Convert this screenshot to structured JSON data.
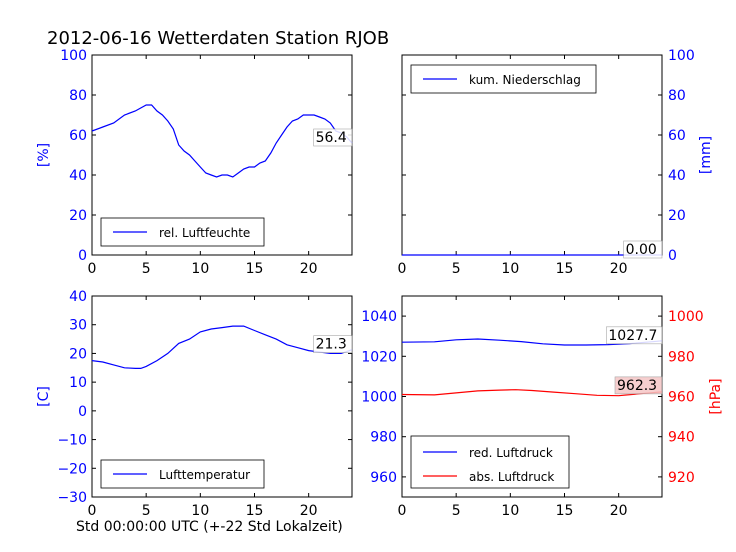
{
  "title": "2012-06-16 Wetterdaten Station RJOB",
  "xlabel": "Std 00:00:00 UTC (+-22 Std Lokalzeit)",
  "colors": {
    "blue": "#0000ff",
    "red": "#ff0000",
    "black": "#000000"
  },
  "chart_data": [
    {
      "type": "line",
      "xlim": [
        0,
        24
      ],
      "ylim": [
        0,
        100
      ],
      "xticks": [
        "0",
        "5",
        "10",
        "15",
        "20"
      ],
      "yticks": [
        "0",
        "20",
        "40",
        "60",
        "80",
        "100"
      ],
      "ylabel": "[%]",
      "legend": "bottom-left",
      "series": [
        {
          "name": "rel. Luftfeuchte",
          "color": "#0000ff",
          "x": [
            0,
            1,
            2,
            3,
            4,
            5,
            5.5,
            6,
            6.5,
            7,
            7.5,
            8,
            8.5,
            9,
            9.5,
            10,
            10.5,
            11,
            11.5,
            12,
            12.5,
            13,
            13.5,
            14,
            14.5,
            15,
            15.5,
            16,
            16.5,
            17,
            17.5,
            18,
            18.5,
            19,
            19.5,
            20,
            20.5,
            21,
            21.5,
            22,
            22.5,
            23,
            23.5,
            24
          ],
          "y": [
            62,
            64,
            66,
            70,
            72,
            75,
            75,
            72,
            70,
            67,
            63,
            55,
            52,
            50,
            47,
            44,
            41,
            40,
            39,
            40,
            40,
            39,
            41,
            43,
            44,
            44,
            46,
            47,
            51,
            56,
            60,
            64,
            67,
            68,
            70,
            70,
            70,
            69,
            68,
            66,
            62,
            61,
            59,
            56
          ]
        }
      ],
      "end_label": "56.4"
    },
    {
      "type": "line",
      "xlim": [
        0,
        24
      ],
      "ylim": [
        0,
        100
      ],
      "xticks": [
        "0",
        "5",
        "10",
        "15",
        "20"
      ],
      "yticks": [
        "0",
        "20",
        "40",
        "60",
        "80",
        "100"
      ],
      "ylabel": "[mm]",
      "legend": "top-left",
      "series": [
        {
          "name": "kum. Niederschlag",
          "color": "#0000ff",
          "x": [
            0,
            24
          ],
          "y": [
            0,
            0
          ]
        }
      ],
      "end_label": "0.00"
    },
    {
      "type": "line",
      "xlim": [
        0,
        24
      ],
      "ylim": [
        -30,
        40
      ],
      "xticks": [
        "0",
        "5",
        "10",
        "15",
        "20"
      ],
      "yticks": [
        "−30",
        "−20",
        "−10",
        "0",
        "10",
        "20",
        "30",
        "40"
      ],
      "ylabel": "[C]",
      "legend": "bottom-left",
      "series": [
        {
          "name": "Lufttemperatur",
          "color": "#0000ff",
          "x": [
            0,
            1,
            2,
            3,
            4,
            4.5,
            5,
            6,
            7,
            8,
            9,
            10,
            11,
            12,
            13,
            14,
            15,
            16,
            17,
            18,
            19,
            20,
            21,
            22,
            23,
            24
          ],
          "y": [
            17.5,
            17,
            16,
            15,
            14.8,
            14.8,
            15.5,
            17.5,
            20,
            23.5,
            25,
            27.5,
            28.5,
            29,
            29.5,
            29.5,
            28,
            26.5,
            25,
            23,
            22,
            21,
            20.5,
            20,
            20,
            21.3
          ]
        }
      ],
      "end_label": "21.3"
    },
    {
      "type": "line",
      "xlim": [
        0,
        24
      ],
      "ylim": [
        950,
        1050
      ],
      "ylim_right": [
        910,
        1010
      ],
      "xticks": [
        "0",
        "5",
        "10",
        "15",
        "20"
      ],
      "yticks": [
        "960",
        "980",
        "1000",
        "1020",
        "1040"
      ],
      "yticks_right": [
        "920",
        "940",
        "960",
        "980",
        "1000"
      ],
      "ylabel_right": "[hPa]",
      "legend": "bottom-left",
      "series": [
        {
          "name": "red. Luftdruck",
          "color": "#0000ff",
          "axis": "left",
          "x": [
            0,
            3,
            5,
            7,
            9,
            11,
            13,
            15,
            17,
            19,
            21,
            23,
            24
          ],
          "y": [
            1027,
            1027.2,
            1028.2,
            1028.6,
            1028,
            1027.3,
            1026.2,
            1025.6,
            1025.6,
            1025.8,
            1026.3,
            1027.2,
            1027.7
          ]
        },
        {
          "name": "abs. Luftdruck",
          "color": "#ff0000",
          "axis": "right",
          "x": [
            0,
            3,
            5,
            7,
            9,
            10.5,
            12,
            14,
            16,
            18,
            20,
            22,
            24
          ],
          "y": [
            961,
            960.8,
            961.8,
            962.8,
            963.2,
            963.4,
            963,
            962.2,
            961.4,
            960.6,
            960.4,
            961.4,
            962.3
          ]
        }
      ],
      "end_label": "1027.7",
      "end_label_2": "962.3"
    }
  ]
}
